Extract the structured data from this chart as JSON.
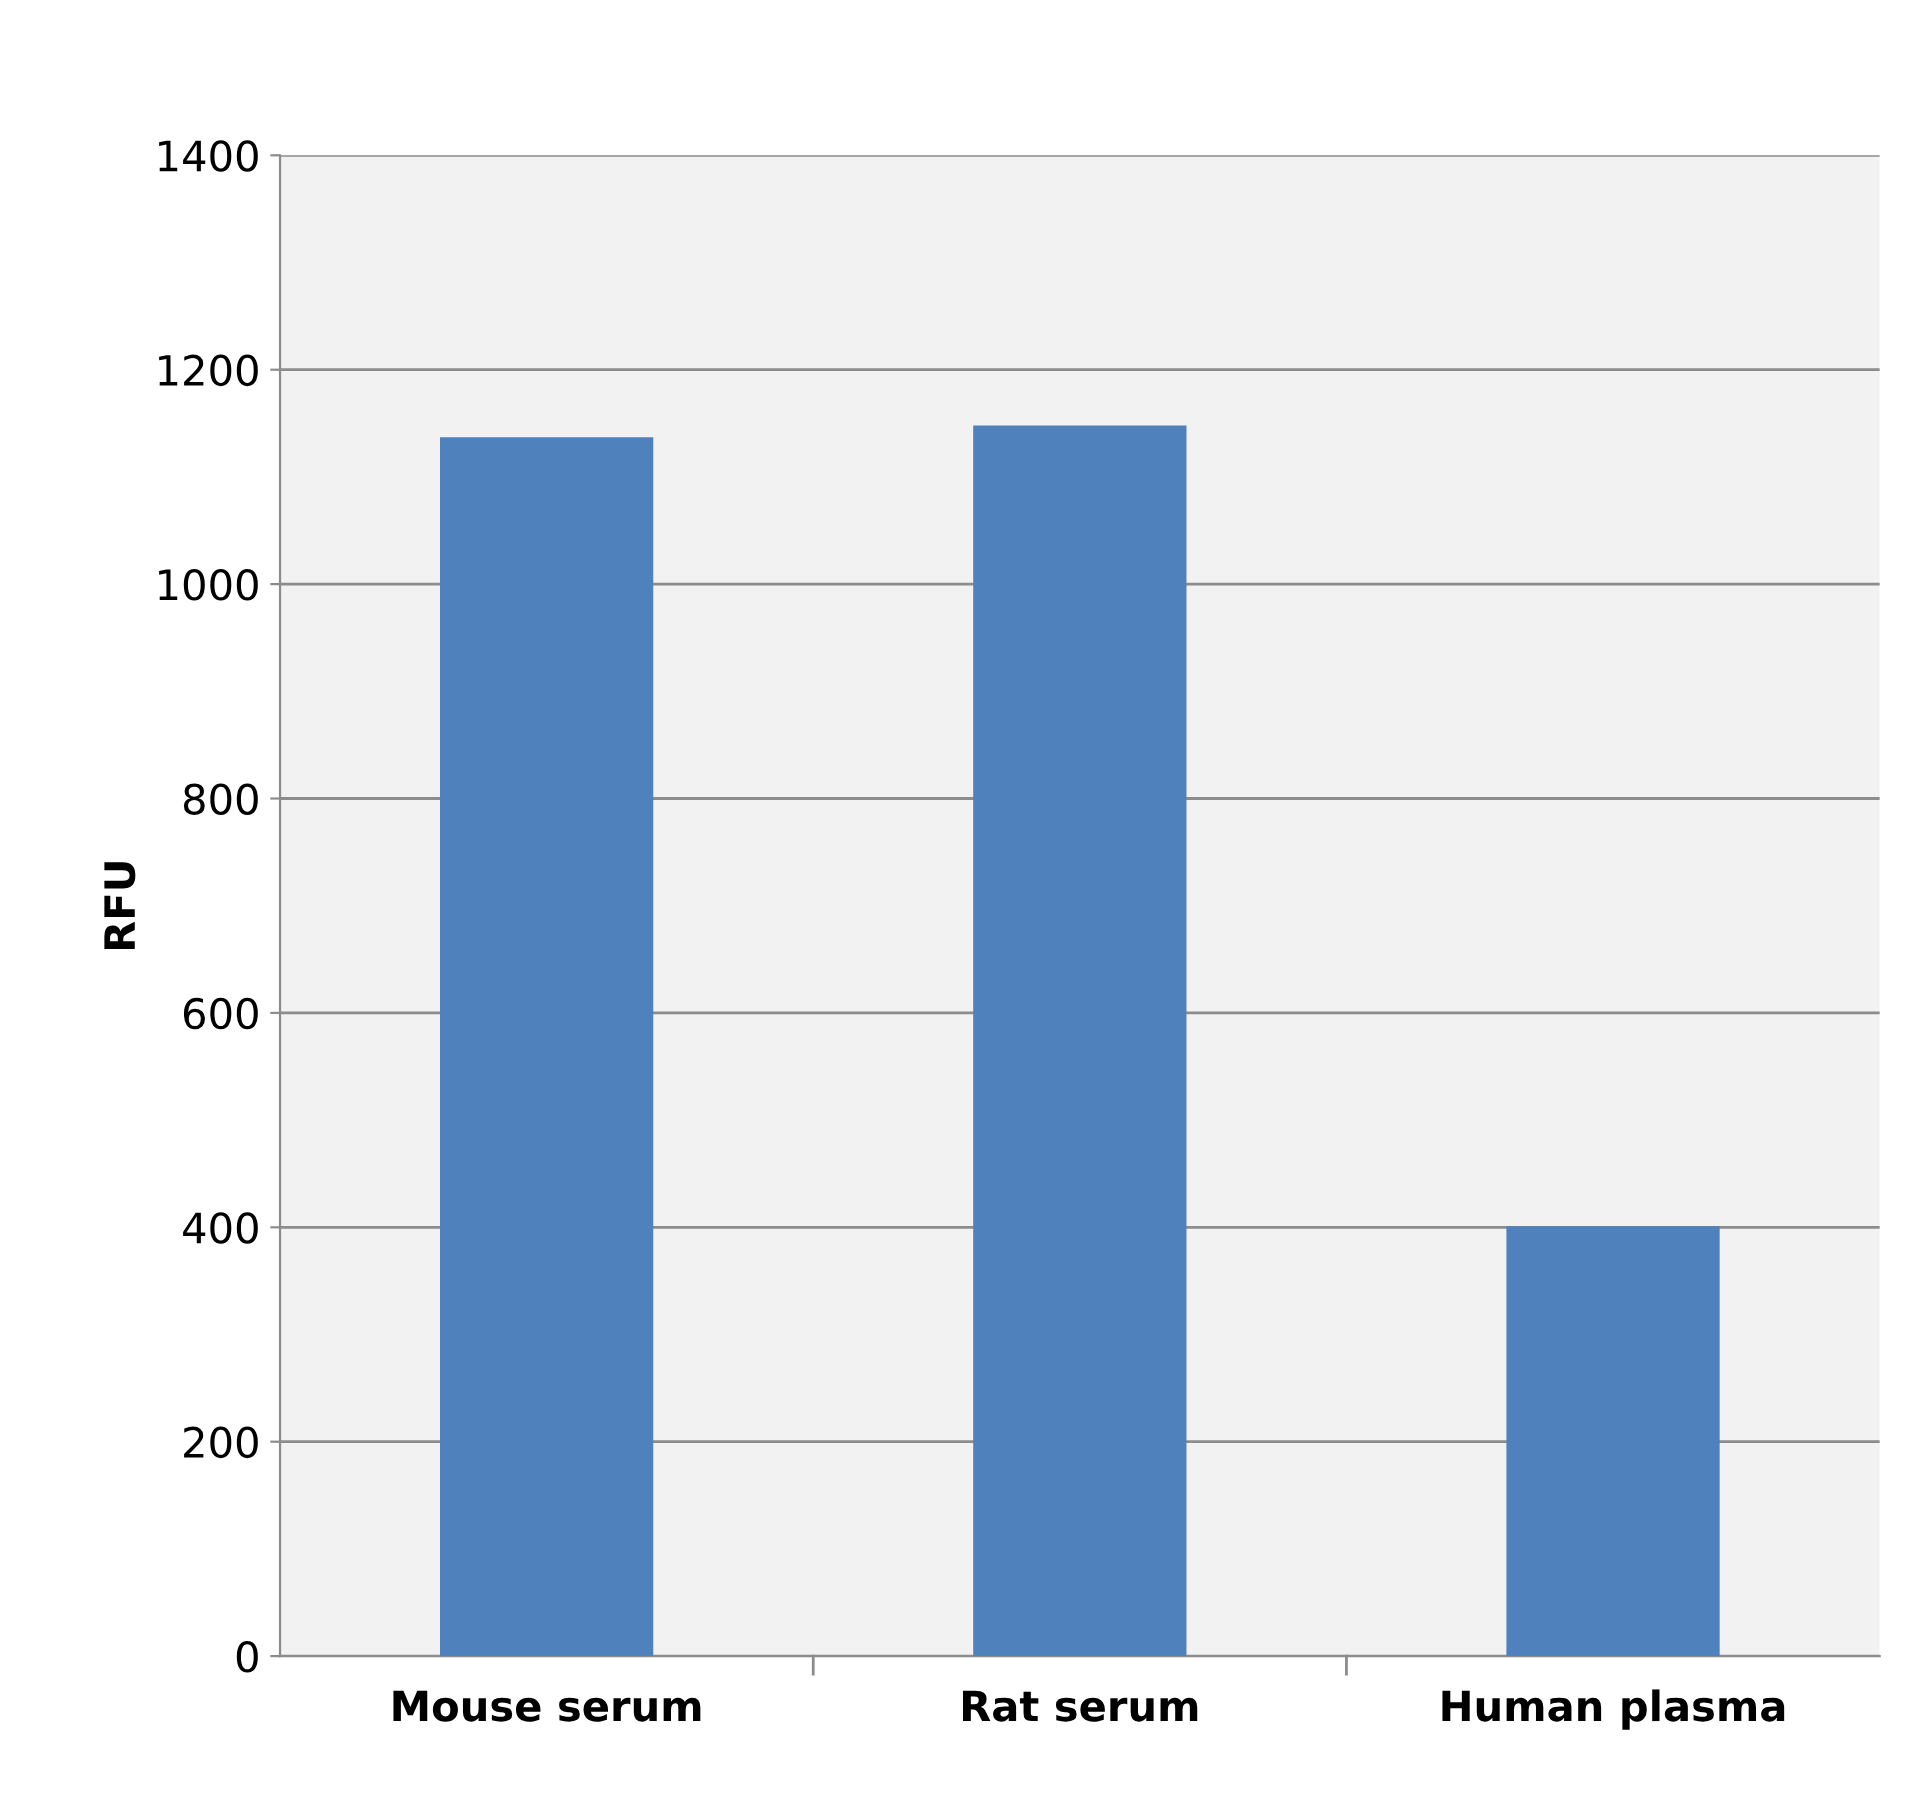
{
  "chart_data": {
    "type": "bar",
    "ylabel": "RFU",
    "categories": [
      "Mouse serum",
      "Rat serum",
      "Human plasma"
    ],
    "values": [
      1137,
      1148,
      401
    ],
    "color": "#4f81bd",
    "ylim": [
      0,
      1400
    ],
    "yticks": [
      0,
      200,
      400,
      600,
      800,
      1000,
      1200,
      1400
    ],
    "grid": "y",
    "legend": false
  }
}
